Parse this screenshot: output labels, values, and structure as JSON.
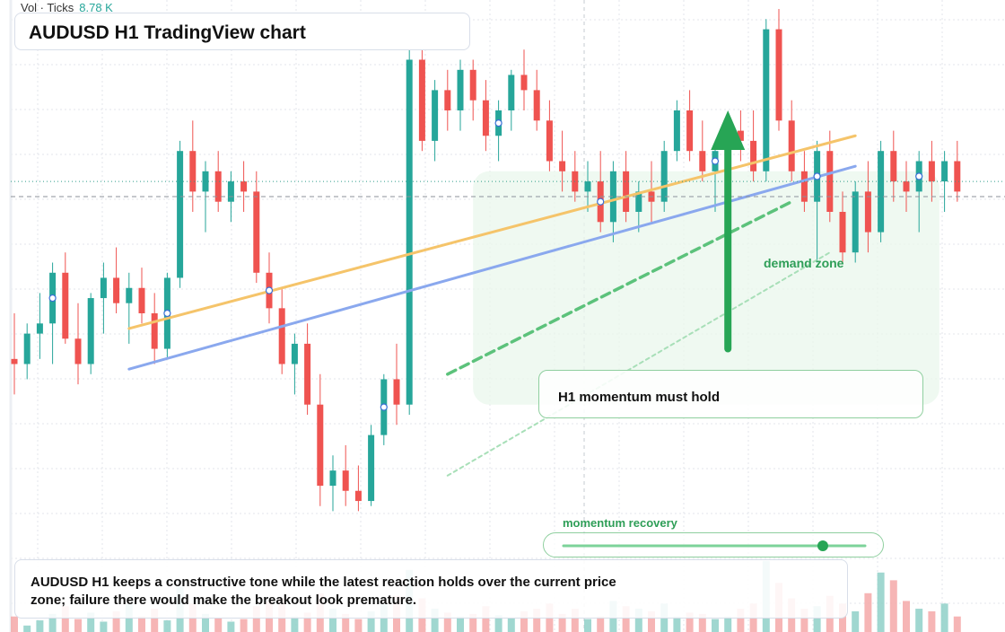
{
  "volume_readout": {
    "label": "Vol · Ticks",
    "value": "8.78 K"
  },
  "title": "AUDUSD H1 TradingView chart",
  "annotations": {
    "callout": "H1 momentum must hold",
    "zone_label": "demand zone",
    "momentum_label": "momentum recovery",
    "momentum_level": 0.86,
    "note": "AUDUSD H1 keeps a constructive tone while the latest reaction holds over the current price zone; failure there would make the breakout look premature."
  },
  "colors": {
    "bull": "#26a69a",
    "bear": "#ef5350",
    "bull_volume": "#8fd0c8",
    "bear_volume": "#f4a8a8",
    "trend_orange": "#f5c46a",
    "trend_blue": "#8aa8ee",
    "accent_green": "#27a555",
    "grid": "#e3e6eb"
  },
  "chart_data": {
    "type": "candlestick",
    "symbol": "AUDUSD",
    "timeframe": "H1",
    "note": "Price and volume axis labels are not visible in the screenshot; values are in relative chart units (higher = higher price).",
    "ylim": [
      0,
      100
    ],
    "volume_ylim": [
      0,
      100
    ],
    "candles": [
      {
        "o": 31,
        "h": 40,
        "l": 24,
        "c": 30,
        "v": 12
      },
      {
        "o": 30,
        "h": 38,
        "l": 27,
        "c": 36,
        "v": 5
      },
      {
        "o": 36,
        "h": 44,
        "l": 31,
        "c": 38,
        "v": 9
      },
      {
        "o": 38,
        "h": 50,
        "l": 30,
        "c": 48,
        "v": 14
      },
      {
        "o": 48,
        "h": 52,
        "l": 34,
        "c": 35,
        "v": 20
      },
      {
        "o": 35,
        "h": 42,
        "l": 26,
        "c": 30,
        "v": 10
      },
      {
        "o": 30,
        "h": 44,
        "l": 28,
        "c": 43,
        "v": 15
      },
      {
        "o": 43,
        "h": 50,
        "l": 36,
        "c": 47,
        "v": 8
      },
      {
        "o": 47,
        "h": 53,
        "l": 40,
        "c": 42,
        "v": 16
      },
      {
        "o": 42,
        "h": 48,
        "l": 34,
        "c": 45,
        "v": 22
      },
      {
        "o": 45,
        "h": 49,
        "l": 38,
        "c": 40,
        "v": 12
      },
      {
        "o": 40,
        "h": 44,
        "l": 30,
        "c": 33,
        "v": 18
      },
      {
        "o": 33,
        "h": 48,
        "l": 31,
        "c": 47,
        "v": 9
      },
      {
        "o": 47,
        "h": 74,
        "l": 45,
        "c": 72,
        "v": 35
      },
      {
        "o": 72,
        "h": 78,
        "l": 60,
        "c": 64,
        "v": 22
      },
      {
        "o": 64,
        "h": 70,
        "l": 56,
        "c": 68,
        "v": 14
      },
      {
        "o": 68,
        "h": 72,
        "l": 60,
        "c": 62,
        "v": 11
      },
      {
        "o": 62,
        "h": 68,
        "l": 58,
        "c": 66,
        "v": 8
      },
      {
        "o": 66,
        "h": 70,
        "l": 60,
        "c": 64,
        "v": 10
      },
      {
        "o": 64,
        "h": 68,
        "l": 46,
        "c": 48,
        "v": 20
      },
      {
        "o": 48,
        "h": 52,
        "l": 38,
        "c": 41,
        "v": 24
      },
      {
        "o": 41,
        "h": 45,
        "l": 28,
        "c": 30,
        "v": 26
      },
      {
        "o": 30,
        "h": 36,
        "l": 24,
        "c": 34,
        "v": 12
      },
      {
        "o": 34,
        "h": 38,
        "l": 20,
        "c": 22,
        "v": 15
      },
      {
        "o": 22,
        "h": 28,
        "l": 2,
        "c": 6,
        "v": 30
      },
      {
        "o": 6,
        "h": 12,
        "l": 1,
        "c": 9,
        "v": 18
      },
      {
        "o": 9,
        "h": 14,
        "l": 2,
        "c": 5,
        "v": 14
      },
      {
        "o": 5,
        "h": 10,
        "l": 1,
        "c": 3,
        "v": 10
      },
      {
        "o": 3,
        "h": 18,
        "l": 2,
        "c": 16,
        "v": 16
      },
      {
        "o": 16,
        "h": 28,
        "l": 14,
        "c": 27,
        "v": 22
      },
      {
        "o": 27,
        "h": 34,
        "l": 18,
        "c": 22,
        "v": 28
      },
      {
        "o": 22,
        "h": 92,
        "l": 20,
        "c": 90,
        "v": 48
      },
      {
        "o": 90,
        "h": 94,
        "l": 72,
        "c": 74,
        "v": 26
      },
      {
        "o": 74,
        "h": 86,
        "l": 70,
        "c": 84,
        "v": 18
      },
      {
        "o": 84,
        "h": 88,
        "l": 76,
        "c": 80,
        "v": 15
      },
      {
        "o": 80,
        "h": 90,
        "l": 76,
        "c": 88,
        "v": 12
      },
      {
        "o": 88,
        "h": 90,
        "l": 78,
        "c": 82,
        "v": 14
      },
      {
        "o": 82,
        "h": 86,
        "l": 72,
        "c": 75,
        "v": 20
      },
      {
        "o": 75,
        "h": 82,
        "l": 70,
        "c": 80,
        "v": 13
      },
      {
        "o": 80,
        "h": 88,
        "l": 76,
        "c": 87,
        "v": 11
      },
      {
        "o": 87,
        "h": 92,
        "l": 80,
        "c": 84,
        "v": 16
      },
      {
        "o": 84,
        "h": 88,
        "l": 76,
        "c": 78,
        "v": 18
      },
      {
        "o": 78,
        "h": 82,
        "l": 68,
        "c": 70,
        "v": 22
      },
      {
        "o": 70,
        "h": 76,
        "l": 64,
        "c": 68,
        "v": 14
      },
      {
        "o": 68,
        "h": 72,
        "l": 62,
        "c": 64,
        "v": 18
      },
      {
        "o": 64,
        "h": 70,
        "l": 60,
        "c": 66,
        "v": 10
      },
      {
        "o": 66,
        "h": 72,
        "l": 56,
        "c": 58,
        "v": 12
      },
      {
        "o": 58,
        "h": 70,
        "l": 54,
        "c": 68,
        "v": 24
      },
      {
        "o": 68,
        "h": 72,
        "l": 58,
        "c": 60,
        "v": 20
      },
      {
        "o": 60,
        "h": 66,
        "l": 56,
        "c": 64,
        "v": 18
      },
      {
        "o": 64,
        "h": 70,
        "l": 58,
        "c": 62,
        "v": 16
      },
      {
        "o": 62,
        "h": 74,
        "l": 60,
        "c": 72,
        "v": 22
      },
      {
        "o": 72,
        "h": 82,
        "l": 70,
        "c": 80,
        "v": 12
      },
      {
        "o": 80,
        "h": 84,
        "l": 70,
        "c": 72,
        "v": 15
      },
      {
        "o": 72,
        "h": 78,
        "l": 66,
        "c": 68,
        "v": 14
      },
      {
        "o": 68,
        "h": 74,
        "l": 60,
        "c": 72,
        "v": 10
      },
      {
        "o": 72,
        "h": 78,
        "l": 66,
        "c": 76,
        "v": 12
      },
      {
        "o": 76,
        "h": 80,
        "l": 70,
        "c": 74,
        "v": 18
      },
      {
        "o": 74,
        "h": 80,
        "l": 66,
        "c": 68,
        "v": 22
      },
      {
        "o": 68,
        "h": 98,
        "l": 66,
        "c": 96,
        "v": 55
      },
      {
        "o": 96,
        "h": 100,
        "l": 76,
        "c": 78,
        "v": 38
      },
      {
        "o": 78,
        "h": 82,
        "l": 66,
        "c": 68,
        "v": 26
      },
      {
        "o": 68,
        "h": 72,
        "l": 60,
        "c": 62,
        "v": 18
      },
      {
        "o": 62,
        "h": 74,
        "l": 50,
        "c": 72,
        "v": 20
      },
      {
        "o": 72,
        "h": 76,
        "l": 58,
        "c": 60,
        "v": 28
      },
      {
        "o": 60,
        "h": 64,
        "l": 50,
        "c": 52,
        "v": 22
      },
      {
        "o": 52,
        "h": 66,
        "l": 50,
        "c": 64,
        "v": 16
      },
      {
        "o": 64,
        "h": 70,
        "l": 52,
        "c": 56,
        "v": 30
      },
      {
        "o": 56,
        "h": 74,
        "l": 54,
        "c": 72,
        "v": 46
      },
      {
        "o": 72,
        "h": 76,
        "l": 62,
        "c": 66,
        "v": 40
      },
      {
        "o": 66,
        "h": 70,
        "l": 60,
        "c": 64,
        "v": 24
      },
      {
        "o": 64,
        "h": 72,
        "l": 56,
        "c": 70,
        "v": 18
      },
      {
        "o": 70,
        "h": 74,
        "l": 62,
        "c": 66,
        "v": 16
      },
      {
        "o": 66,
        "h": 72,
        "l": 60,
        "c": 70,
        "v": 22
      },
      {
        "o": 70,
        "h": 74,
        "l": 62,
        "c": 64,
        "v": 12
      }
    ],
    "overlays": [
      {
        "type": "trendline",
        "color": "orange",
        "from": {
          "i": 9,
          "y": 37
        },
        "to": {
          "i": 66,
          "y": 75
        }
      },
      {
        "type": "trendline",
        "color": "blue",
        "from": {
          "i": 9,
          "y": 29
        },
        "to": {
          "i": 66,
          "y": 69
        }
      },
      {
        "type": "dashed-trendline",
        "color": "green",
        "from": {
          "i": 34,
          "y": 28
        },
        "to": {
          "i": 61,
          "y": 62
        }
      },
      {
        "type": "dotted-trendline",
        "color": "light-green",
        "from": {
          "i": 34,
          "y": 8
        },
        "to": {
          "i": 64,
          "y": 52
        }
      },
      {
        "type": "horizontal-line",
        "style": "dashed",
        "y": 63
      },
      {
        "type": "horizontal-line",
        "style": "dotted",
        "y": 66
      },
      {
        "type": "arrow",
        "direction": "up",
        "i": 56,
        "from_y": 33,
        "to_y": 80
      }
    ]
  }
}
